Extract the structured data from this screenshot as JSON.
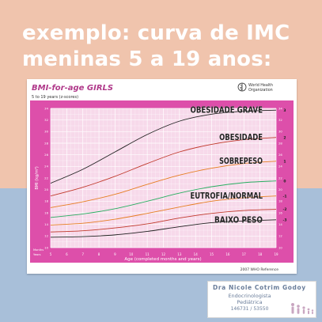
{
  "headline": {
    "line1": "exemplo: curva de IMC",
    "line2": "meninas 5 a 19 anos:"
  },
  "colors": {
    "background_top": "#f0c4ad",
    "background_bottom": "#a8bfd9",
    "chart_frame": "#dd4faa",
    "chart_plot": "#f7d9ea",
    "chart_title": "#b0398a"
  },
  "chart": {
    "title": "BMI-for-age GIRLS",
    "subtitle": "5 to 19 years (z-scores)",
    "logo_text_1": "World Health",
    "logo_text_2": "Organization",
    "xlabel": "Age (completed months and years)",
    "ylabel": "BMI (kg/m²)",
    "x_row_label_1": "Months",
    "x_row_label_2": "Years",
    "footer": "2007 WHO Reference"
  },
  "chart_data": {
    "type": "line",
    "title": "BMI-for-age GIRLS",
    "subtitle": "5 to 19 years (z-scores)",
    "xlabel": "Age (completed months and years)",
    "ylabel": "BMI (kg/m²)",
    "x_unit": "years",
    "xlim": [
      5,
      19
    ],
    "ylim": [
      10,
      34
    ],
    "grid": true,
    "x": [
      5,
      7,
      9,
      11,
      13,
      15,
      17,
      19
    ],
    "x_ticks": [
      "5",
      "6",
      "7",
      "8",
      "9",
      "10",
      "11",
      "12",
      "13",
      "14",
      "15",
      "16",
      "17",
      "18",
      "19"
    ],
    "y_ticks": [
      "10",
      "12",
      "14",
      "16",
      "18",
      "20",
      "22",
      "24",
      "26",
      "28",
      "30",
      "32",
      "34"
    ],
    "series": [
      {
        "name": "3",
        "color": "#222222",
        "values": [
          21.1,
          23.5,
          26.5,
          29.5,
          31.8,
          33.0,
          33.5,
          33.7
        ]
      },
      {
        "name": "2",
        "color": "#c0392b",
        "values": [
          18.9,
          20.4,
          22.3,
          24.5,
          26.5,
          27.8,
          28.6,
          29.0
        ]
      },
      {
        "name": "1",
        "color": "#e67e22",
        "values": [
          16.9,
          17.9,
          19.2,
          20.9,
          22.5,
          23.7,
          24.5,
          24.9
        ]
      },
      {
        "name": "0",
        "color": "#27ae60",
        "values": [
          15.2,
          15.8,
          16.7,
          18.0,
          19.4,
          20.5,
          21.2,
          21.5
        ]
      },
      {
        "name": "-1",
        "color": "#e67e22",
        "values": [
          13.9,
          14.2,
          14.9,
          15.9,
          17.0,
          18.0,
          18.6,
          18.9
        ]
      },
      {
        "name": "-2",
        "color": "#c0392b",
        "values": [
          12.7,
          12.9,
          13.4,
          14.1,
          15.1,
          15.9,
          16.4,
          16.6
        ]
      },
      {
        "name": "-3",
        "color": "#222222",
        "values": [
          11.8,
          11.9,
          12.2,
          12.8,
          13.6,
          14.3,
          14.6,
          14.8
        ]
      }
    ],
    "annotations": [
      {
        "text": "OBESIDADE GRAVE",
        "series": "3"
      },
      {
        "text": "OBESIDADE",
        "series": "2"
      },
      {
        "text": "SOBREPESO",
        "series": "1"
      },
      {
        "text": "EUTROFIA/NORMAL",
        "series": "-1"
      },
      {
        "text": "BAIXO PESO",
        "series": "-3"
      }
    ]
  },
  "contact": {
    "name": "Dra Nicole Cotrim Godoy",
    "specialty_1": "Endocrinologista",
    "specialty_2": "Pediátrica",
    "registration": "146731 / 53550"
  }
}
